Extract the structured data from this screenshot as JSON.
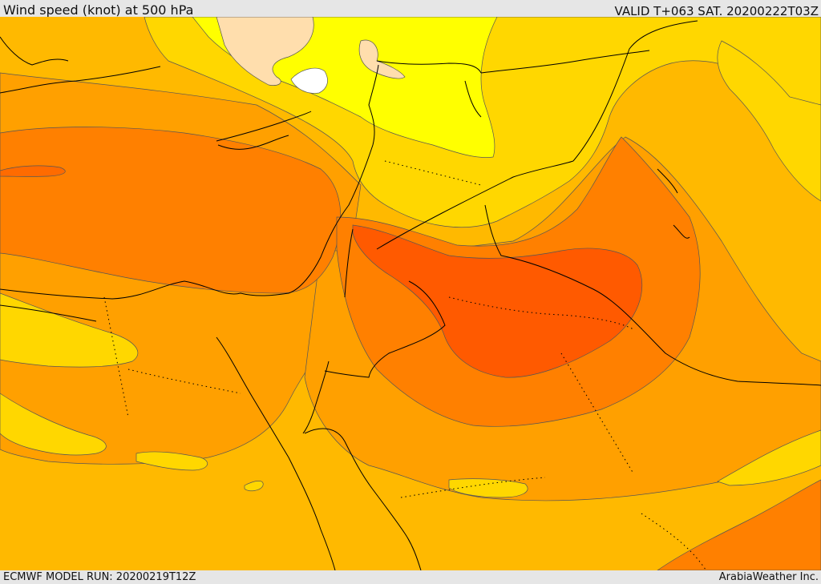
{
  "header": {
    "title": "Wind speed (knot) at 500 hPa",
    "valid": "VALID T+063 SAT. 20200222T03Z"
  },
  "footer": {
    "model_run": "ECMWF MODEL RUN: 20200219T12Z",
    "credit": "ArabiaWeather Inc."
  },
  "map": {
    "field": "wind speed at 500 hPa",
    "colors": {
      "white": "#ffffff",
      "peach": "#ffdead",
      "yellow": "#ffff00",
      "gold": "#ffd700",
      "amber": "#ffb900",
      "orange_light": "#ffa000",
      "orange": "#ff8000",
      "orange_red": "#ff6b00",
      "red_orange": "#ff5a00",
      "coastline": "#000000",
      "contour": "#555555"
    },
    "features": [
      "contour-bands",
      "coastlines",
      "country-borders",
      "region-borders"
    ]
  }
}
